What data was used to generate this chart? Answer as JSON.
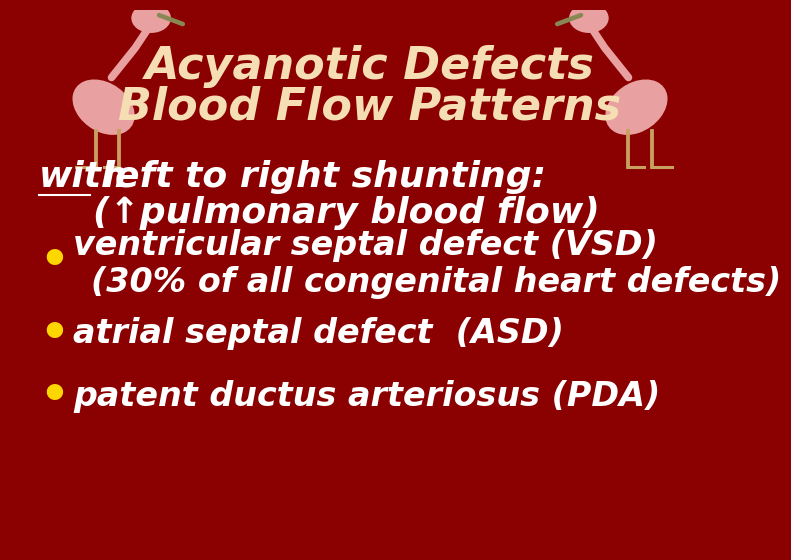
{
  "background_color": "#8B0000",
  "title_line1": "Acyanotic Defects",
  "title_line2": "Blood Flow Patterns",
  "title_color": "#F5DEB3",
  "title_fontsize": 32,
  "subtitle_line1_part1": "with",
  "subtitle_line1_part2": " left to right shunting:",
  "subtitle_line2": "(↑pulmonary blood flow)",
  "subtitle_color": "#FFFFFF",
  "subtitle_fontsize": 26,
  "bullet_color": "#FFD700",
  "bullet_text_color": "#FFFFFF",
  "bullet_fontsize": 24,
  "bullet1_line1": "ventricular septal defect (VSD)",
  "bullet1_line2": "(30% of all congenital heart defects)",
  "bullet2": "atrial septal defect  (ASD)",
  "bullet3": "patent ductus arteriosus (PDA)",
  "flamingo_color": "#E8A0A0",
  "flamingo_dark": "#C46060",
  "flamingo_leg_color": "#C8A060",
  "flamingo_beak_color": "#888855"
}
